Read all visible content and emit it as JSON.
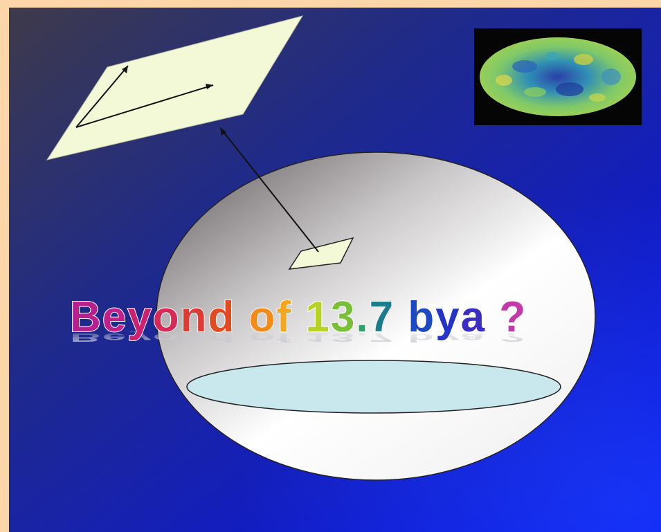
{
  "title": {
    "segments": [
      {
        "text": "B",
        "color": "#b8208f"
      },
      {
        "text": "e",
        "color": "#c2208a"
      },
      {
        "text": "y",
        "color": "#cc2070"
      },
      {
        "text": "o",
        "color": "#d82a57"
      },
      {
        "text": "n",
        "color": "#e03a34"
      },
      {
        "text": "d",
        "color": "#e24b22"
      },
      {
        "text": " ",
        "color": "#ffffff"
      },
      {
        "text": "o",
        "color": "#f28a1c"
      },
      {
        "text": "f",
        "color": "#f4a61c"
      },
      {
        "text": " ",
        "color": "#ffffff"
      },
      {
        "text": "1",
        "color": "#b8d126"
      },
      {
        "text": "3",
        "color": "#79c038"
      },
      {
        "text": ".",
        "color": "#2ea06a"
      },
      {
        "text": "7",
        "color": "#1d7c8c"
      },
      {
        "text": " ",
        "color": "#ffffff"
      },
      {
        "text": "b",
        "color": "#1d49c2"
      },
      {
        "text": "y",
        "color": "#2434c8"
      },
      {
        "text": "a",
        "color": "#3b2ec4"
      },
      {
        "text": " ",
        "color": "#ffffff"
      },
      {
        "text": "?",
        "color": "#c23aa8"
      }
    ],
    "reflection_text": "Beyond of 13.7 bya ?"
  },
  "icons": {
    "cmb_map": "cmb-sky-map-image",
    "plane": "tangent-plane",
    "sphere": "closed-universe-sphere"
  },
  "colors": {
    "frame": "#fcd5a8",
    "background_dark": "#3a3550",
    "background_blue": "#0a12f0",
    "plane_fill": "#f3f8d6",
    "disk_fill": "#c8e8ee"
  }
}
